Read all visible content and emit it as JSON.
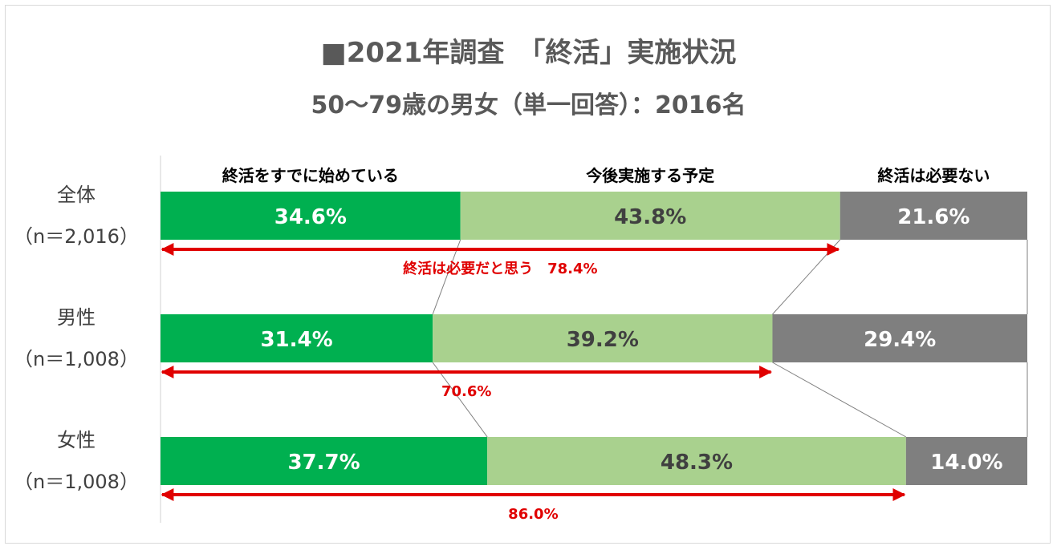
{
  "title": "■2021年調査　「終活」実施状況",
  "subtitle": "50～79歳の男女（単一回答）：2016名",
  "colors": {
    "started": "#00b050",
    "planned": "#a9d18e",
    "not_needed": "#7f7f7f",
    "arrow": "#e00000",
    "text_dark": "#404040"
  },
  "chart_data": {
    "type": "bar",
    "orientation": "horizontal",
    "stacked": true,
    "categories": [
      {
        "name": "全体",
        "n": "（n＝2,016）"
      },
      {
        "name": "男性",
        "n": "（n＝1,008）"
      },
      {
        "name": "女性",
        "n": "（n＝1,008）"
      }
    ],
    "series": [
      {
        "name": "終活をすでに始めている",
        "values": [
          34.6,
          31.4,
          37.7
        ],
        "labels": [
          "34.6%",
          "31.4%",
          "37.7%"
        ]
      },
      {
        "name": "今後実施する予定",
        "values": [
          43.8,
          39.2,
          48.3
        ],
        "labels": [
          "43.8%",
          "39.2%",
          "48.3%"
        ]
      },
      {
        "name": "終活は必要ない",
        "values": [
          21.6,
          29.4,
          14.0
        ],
        "labels": [
          "21.6%",
          "29.4%",
          "14.0%"
        ]
      }
    ],
    "xlim": [
      0,
      100
    ],
    "annotations": [
      {
        "text": "終活は必要だと思う　78.4%",
        "value": 78.4
      },
      {
        "text": "70.6%",
        "value": 70.6
      },
      {
        "text": "86.0%",
        "value": 86.0
      }
    ]
  }
}
